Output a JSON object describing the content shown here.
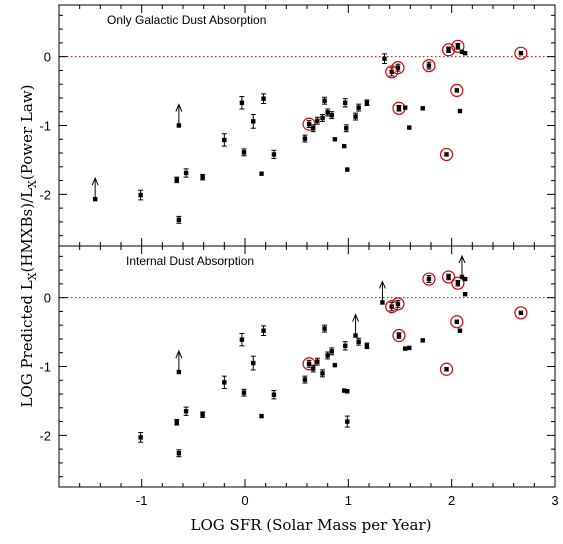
{
  "chart_data": {
    "type": "scatter",
    "xlabel": "LOG SFR (Solar Mass per Year)",
    "ylabel": "LOG Predicted L_X(HMXBs)/L_X(Power Law)",
    "ylabel_parts": {
      "a": "LOG Predicted L",
      "b": "X",
      "c": "(HMXBs)/L",
      "d": "X",
      "e": "(Power Law)"
    },
    "xlim": [
      -1.8,
      3.0
    ],
    "x_ticks": [
      -1,
      0,
      1,
      2,
      3
    ],
    "x_tick_labels": [
      "-1",
      "0",
      "1",
      "2",
      "3"
    ],
    "reference_line": {
      "y": 0,
      "color": "#cc0000",
      "style": "dotted"
    },
    "highlight_color": "#d40000",
    "panels": [
      {
        "title": "Only Galactic Dust Absorption",
        "ylim": [
          -2.75,
          0.75
        ],
        "y_ticks": [
          0,
          -1,
          -2
        ],
        "y_tick_labels": [
          "0",
          "-1",
          "-2"
        ],
        "points": [
          {
            "x": -1.45,
            "y": -2.07,
            "arrow": "up"
          },
          {
            "x": -1.01,
            "y": -2.01,
            "err": 0.07
          },
          {
            "x": -0.66,
            "y": -1.79,
            "err": 0.04
          },
          {
            "x": -0.64,
            "y": -1.0,
            "arrow": "up"
          },
          {
            "x": -0.64,
            "y": -2.37,
            "err": 0.05
          },
          {
            "x": -0.57,
            "y": -1.69,
            "err": 0.06
          },
          {
            "x": -0.41,
            "y": -1.75,
            "err": 0.04
          },
          {
            "x": -0.2,
            "y": -1.21,
            "err": 0.09
          },
          {
            "x": -0.03,
            "y": -0.67,
            "err": 0.09
          },
          {
            "x": -0.01,
            "y": -1.39,
            "err": 0.05
          },
          {
            "x": 0.08,
            "y": -0.94,
            "err": 0.1
          },
          {
            "x": 0.16,
            "y": -1.7
          },
          {
            "x": 0.18,
            "y": -0.61,
            "err": 0.07
          },
          {
            "x": 0.28,
            "y": -1.42,
            "err": 0.06
          },
          {
            "x": 0.58,
            "y": -1.19,
            "err": 0.05
          },
          {
            "x": 0.62,
            "y": -0.98,
            "err": 0.05,
            "circled": true
          },
          {
            "x": 0.66,
            "y": -1.04,
            "err": 0.05
          },
          {
            "x": 0.7,
            "y": -0.93,
            "err": 0.05
          },
          {
            "x": 0.75,
            "y": -0.89,
            "err": 0.05
          },
          {
            "x": 0.77,
            "y": -0.64,
            "err": 0.05
          },
          {
            "x": 0.8,
            "y": -0.81,
            "err": 0.05
          },
          {
            "x": 0.84,
            "y": -0.85,
            "err": 0.05
          },
          {
            "x": 0.87,
            "y": -1.2
          },
          {
            "x": 0.96,
            "y": -1.3
          },
          {
            "x": 0.97,
            "y": -0.67,
            "err": 0.06
          },
          {
            "x": 0.98,
            "y": -1.04,
            "err": 0.05
          },
          {
            "x": 0.99,
            "y": -1.64
          },
          {
            "x": 1.07,
            "y": -0.87,
            "err": 0.05
          },
          {
            "x": 1.1,
            "y": -0.74,
            "err": 0.05
          },
          {
            "x": 1.18,
            "y": -0.67,
            "err": 0.04
          },
          {
            "x": 1.35,
            "y": -0.03,
            "err": 0.07
          },
          {
            "x": 1.42,
            "y": -0.22,
            "err": 0.06,
            "circled": true
          },
          {
            "x": 1.48,
            "y": -0.16,
            "err": 0.05,
            "circled": true
          },
          {
            "x": 1.49,
            "y": -0.75,
            "err": 0.04,
            "circled": true
          },
          {
            "x": 1.55,
            "y": -0.74
          },
          {
            "x": 1.59,
            "y": -1.03
          },
          {
            "x": 1.72,
            "y": -0.75
          },
          {
            "x": 1.78,
            "y": -0.13,
            "err": 0.05,
            "circled": true
          },
          {
            "x": 1.95,
            "y": -1.42,
            "circled": true
          },
          {
            "x": 1.97,
            "y": 0.1,
            "err": 0.04,
            "circled": true
          },
          {
            "x": 2.05,
            "y": -0.49,
            "circled": true
          },
          {
            "x": 2.06,
            "y": 0.15,
            "err": 0.04,
            "circled": true
          },
          {
            "x": 2.08,
            "y": -0.79
          },
          {
            "x": 2.1,
            "y": 0.07
          },
          {
            "x": 2.13,
            "y": 0.05
          },
          {
            "x": 2.67,
            "y": 0.05,
            "circled": true
          }
        ]
      },
      {
        "title": "Internal Dust Absorption",
        "ylim": [
          -2.75,
          0.75
        ],
        "y_ticks": [
          0,
          -1,
          -2
        ],
        "y_tick_labels": [
          "0",
          "-1",
          "-2"
        ],
        "points": [
          {
            "x": -1.01,
            "y": -2.03,
            "err": 0.07
          },
          {
            "x": -0.66,
            "y": -1.81,
            "err": 0.04
          },
          {
            "x": -0.64,
            "y": -1.08,
            "arrow": "up"
          },
          {
            "x": -0.64,
            "y": -2.26,
            "err": 0.05
          },
          {
            "x": -0.57,
            "y": -1.65,
            "err": 0.06
          },
          {
            "x": -0.41,
            "y": -1.7,
            "err": 0.04
          },
          {
            "x": -0.2,
            "y": -1.23,
            "err": 0.09
          },
          {
            "x": -0.03,
            "y": -0.61,
            "err": 0.09
          },
          {
            "x": -0.01,
            "y": -1.38,
            "err": 0.05
          },
          {
            "x": 0.08,
            "y": -0.95,
            "err": 0.1
          },
          {
            "x": 0.16,
            "y": -1.72
          },
          {
            "x": 0.18,
            "y": -0.48,
            "err": 0.07
          },
          {
            "x": 0.28,
            "y": -1.41,
            "err": 0.06
          },
          {
            "x": 0.58,
            "y": -1.19,
            "err": 0.05
          },
          {
            "x": 0.62,
            "y": -0.96,
            "err": 0.05,
            "circled": true
          },
          {
            "x": 0.66,
            "y": -1.03,
            "err": 0.05
          },
          {
            "x": 0.7,
            "y": -0.93,
            "err": 0.05
          },
          {
            "x": 0.75,
            "y": -1.1,
            "err": 0.05
          },
          {
            "x": 0.77,
            "y": -0.45,
            "err": 0.05
          },
          {
            "x": 0.8,
            "y": -0.84,
            "err": 0.05
          },
          {
            "x": 0.84,
            "y": -0.78,
            "err": 0.05
          },
          {
            "x": 0.87,
            "y": -0.98
          },
          {
            "x": 0.96,
            "y": -1.35
          },
          {
            "x": 0.97,
            "y": -0.7,
            "err": 0.06
          },
          {
            "x": 0.99,
            "y": -1.8,
            "err": 0.08
          },
          {
            "x": 0.99,
            "y": -1.36
          },
          {
            "x": 1.07,
            "y": -0.55,
            "arrow": "up"
          },
          {
            "x": 1.1,
            "y": -0.64,
            "err": 0.05
          },
          {
            "x": 1.18,
            "y": -0.7,
            "err": 0.04
          },
          {
            "x": 1.33,
            "y": -0.07,
            "arrow": "up"
          },
          {
            "x": 1.42,
            "y": -0.13,
            "err": 0.06,
            "circled": true
          },
          {
            "x": 1.48,
            "y": -0.09,
            "err": 0.05,
            "circled": true
          },
          {
            "x": 1.49,
            "y": -0.55,
            "err": 0.04,
            "circled": true
          },
          {
            "x": 1.55,
            "y": -0.74
          },
          {
            "x": 1.59,
            "y": -0.73
          },
          {
            "x": 1.72,
            "y": -0.62
          },
          {
            "x": 1.78,
            "y": 0.27,
            "err": 0.05,
            "circled": true
          },
          {
            "x": 1.95,
            "y": -1.04,
            "circled": true
          },
          {
            "x": 1.97,
            "y": 0.3,
            "err": 0.04,
            "circled": true
          },
          {
            "x": 2.05,
            "y": -0.35,
            "circled": true
          },
          {
            "x": 2.06,
            "y": 0.21,
            "err": 0.04,
            "circled": true
          },
          {
            "x": 2.08,
            "y": -0.48
          },
          {
            "x": 2.1,
            "y": 0.3,
            "arrow": "up"
          },
          {
            "x": 2.13,
            "y": 0.05
          },
          {
            "x": 2.13,
            "y": 0.27
          },
          {
            "x": 2.67,
            "y": -0.22,
            "circled": true
          }
        ]
      }
    ]
  }
}
